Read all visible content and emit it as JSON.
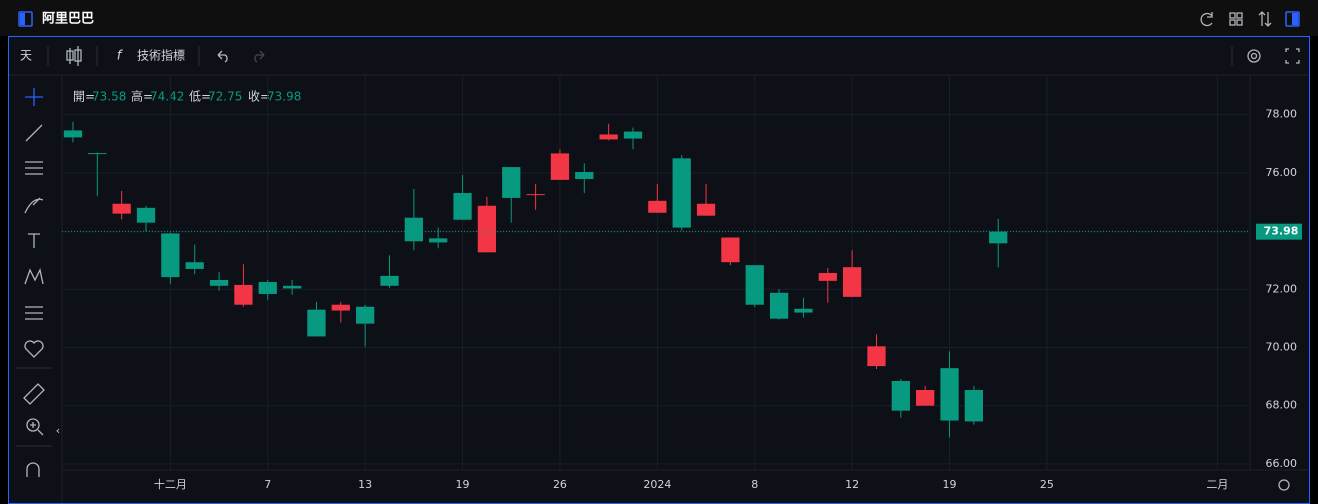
{
  "header": {
    "title": "阿里巴巴"
  },
  "toolbar": {
    "interval": "天",
    "indicators": "技術指標"
  },
  "legend": {
    "labels": [
      "開=",
      "高=",
      "低=",
      "收="
    ]
  },
  "chart_data": {
    "type": "candlestick",
    "open": [
      77.22,
      76.65,
      74.94,
      74.29,
      72.42,
      72.7,
      72.12,
      72.15,
      71.84,
      72.03,
      70.38,
      71.47,
      70.82,
      72.12,
      73.65,
      73.61,
      74.39,
      74.87,
      75.14,
      75.27,
      76.67,
      75.79,
      77.32,
      77.18,
      75.04,
      74.12,
      74.94,
      73.78,
      71.47,
      70.99,
      71.2,
      72.56,
      72.76,
      70.04,
      67.83,
      68.54,
      67.49,
      67.46,
      73.58
    ],
    "high": [
      77.76,
      76.7,
      75.38,
      74.87,
      73.95,
      73.54,
      72.59,
      72.86,
      72.32,
      72.32,
      71.57,
      71.57,
      71.47,
      73.17,
      75.45,
      74.12,
      75.93,
      75.18,
      76.2,
      75.62,
      76.81,
      76.33,
      77.69,
      77.56,
      75.62,
      76.61,
      75.62,
      73.78,
      72.83,
      72.01,
      71.71,
      72.73,
      73.34,
      70.45,
      68.92,
      68.68,
      69.87,
      68.68,
      74.42
    ],
    "low": [
      77.05,
      75.2,
      74.4,
      73.99,
      72.18,
      72.52,
      71.95,
      71.4,
      71.64,
      71.81,
      70.38,
      70.86,
      70.04,
      72.05,
      73.34,
      73.41,
      74.39,
      73.27,
      74.29,
      74.73,
      75.76,
      75.31,
      77.12,
      76.81,
      74.63,
      74.02,
      74.53,
      72.83,
      71.4,
      70.96,
      71.03,
      71.54,
      71.74,
      69.26,
      67.59,
      68.0,
      66.91,
      67.35,
      72.75
    ],
    "close": [
      77.46,
      76.68,
      74.6,
      74.8,
      73.92,
      72.93,
      72.32,
      71.47,
      72.25,
      72.12,
      71.3,
      71.27,
      71.4,
      72.46,
      74.46,
      73.75,
      75.31,
      73.27,
      76.2,
      75.24,
      75.76,
      76.03,
      77.15,
      77.42,
      74.63,
      76.5,
      74.53,
      72.93,
      72.83,
      71.88,
      71.33,
      72.29,
      71.74,
      69.36,
      68.85,
      68.0,
      69.29,
      68.54,
      73.98
    ],
    "up_color": "#089981",
    "down_color": "#f23645",
    "ylim": [
      65.79,
      79.33
    ],
    "yticks": [
      {
        "value": 66,
        "label": "66.00"
      },
      {
        "value": 68,
        "label": "68.00"
      },
      {
        "value": 70,
        "label": "70.00"
      },
      {
        "value": 72,
        "label": "72.00"
      },
      {
        "value": 74,
        "label": "74.00"
      },
      {
        "value": 76,
        "label": "76.00"
      },
      {
        "value": 78,
        "label": "78.00"
      }
    ],
    "xlim": [
      -0.45,
      48.34
    ],
    "xticks": [
      {
        "value": 4,
        "label": "十二月"
      },
      {
        "value": 8,
        "label": "7"
      },
      {
        "value": 12,
        "label": "13"
      },
      {
        "value": 16,
        "label": "19"
      },
      {
        "value": 20,
        "label": "26"
      },
      {
        "value": 24,
        "label": "2024"
      },
      {
        "value": 28,
        "label": "8"
      },
      {
        "value": 32,
        "label": "12"
      },
      {
        "value": 36,
        "label": "19"
      },
      {
        "value": 40,
        "label": "25"
      },
      {
        "value": 47,
        "label": "二月"
      }
    ],
    "grid": true
  }
}
